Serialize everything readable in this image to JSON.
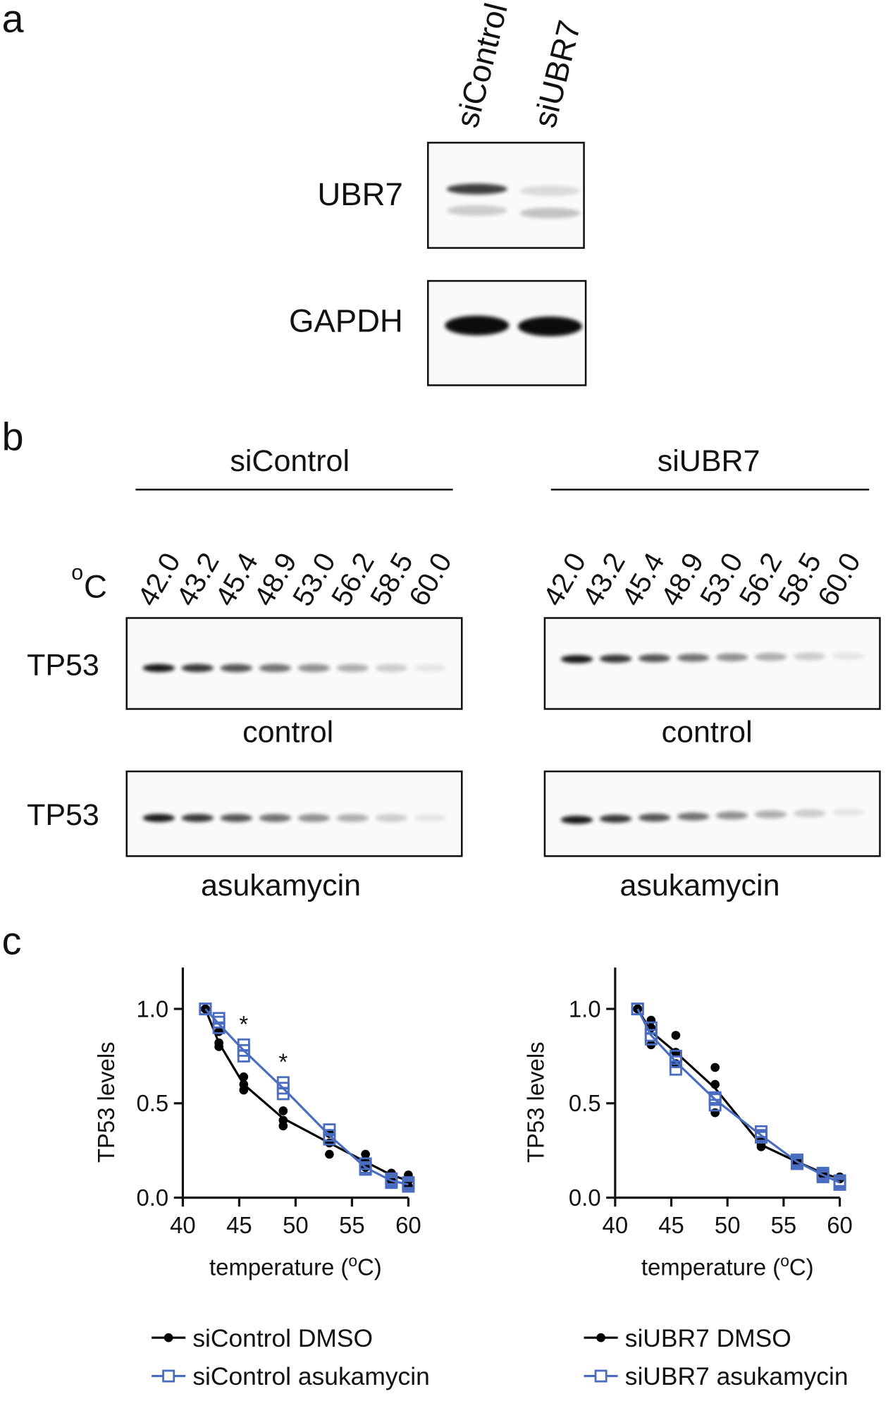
{
  "panel_a": {
    "label": "a",
    "lanes": [
      "siControl",
      "siUBR7"
    ],
    "rows": [
      "UBR7",
      "GAPDH"
    ]
  },
  "panel_b": {
    "label": "b",
    "unit_parts": [
      "o",
      "C"
    ],
    "groups": [
      {
        "name": "siControl",
        "temperatures": [
          "42.0",
          "43.2",
          "45.4",
          "48.9",
          "53.0",
          "56.2",
          "58.5",
          "60.0"
        ],
        "blots": [
          {
            "row": "TP53",
            "condition": "control"
          },
          {
            "row": "TP53",
            "condition": "asukamycin"
          }
        ]
      },
      {
        "name": "siUBR7",
        "temperatures": [
          "42.0",
          "43.2",
          "45.4",
          "48.9",
          "53.0",
          "56.2",
          "58.5",
          "60.0"
        ],
        "blots": [
          {
            "row": "TP53",
            "condition": "control"
          },
          {
            "row": "TP53",
            "condition": "asukamycin"
          }
        ]
      }
    ]
  },
  "panel_c": {
    "label": "c"
  },
  "chart_data": [
    {
      "type": "line",
      "ylabel": "TP53 levels",
      "xlabel_parts": [
        "temperature (",
        "o",
        "C)"
      ],
      "x": [
        42.0,
        43.2,
        45.4,
        48.9,
        53.0,
        56.2,
        58.5,
        60.0
      ],
      "xlim": [
        40,
        60
      ],
      "ylim": [
        0,
        1.2
      ],
      "xticks": [
        40,
        45,
        50,
        55,
        60
      ],
      "yticks": [
        {
          "value": 0,
          "label": "0.0"
        },
        {
          "value": 0.5,
          "label": "0.5"
        },
        {
          "value": 1,
          "label": "1.0"
        }
      ],
      "series": [
        {
          "name": "siControl DMSO",
          "color": "#000000",
          "marker": "circle",
          "values": [
            1.0,
            0.82,
            0.6,
            0.42,
            0.29,
            0.19,
            0.12,
            0.09
          ],
          "replicates": [
            [
              1.0,
              1.0,
              1.0
            ],
            [
              0.8,
              0.82,
              0.88
            ],
            [
              0.57,
              0.6,
              0.64
            ],
            [
              0.38,
              0.41,
              0.46
            ],
            [
              0.23,
              0.29,
              0.34
            ],
            [
              0.16,
              0.19,
              0.23
            ],
            [
              0.09,
              0.12,
              0.13
            ],
            [
              0.06,
              0.09,
              0.12
            ]
          ]
        },
        {
          "name": "siControl asukamycin",
          "color": "#4a6cc0",
          "marker": "square",
          "values": [
            1.0,
            0.92,
            0.78,
            0.58,
            0.33,
            0.16,
            0.09,
            0.07
          ],
          "replicates": [
            [
              1.0,
              1.0,
              1.0
            ],
            [
              0.9,
              0.93,
              0.95
            ],
            [
              0.75,
              0.78,
              0.81
            ],
            [
              0.55,
              0.58,
              0.61
            ],
            [
              0.31,
              0.33,
              0.36
            ],
            [
              0.15,
              0.16,
              0.18
            ],
            [
              0.08,
              0.09,
              0.1
            ],
            [
              0.06,
              0.07,
              0.08
            ]
          ]
        }
      ],
      "annotations": [
        {
          "text": "*",
          "x": 45.4
        },
        {
          "text": "*",
          "x": 48.9
        }
      ]
    },
    {
      "type": "line",
      "ylabel": "TP53 levels",
      "xlabel_parts": [
        "temperature (",
        "o",
        "C)"
      ],
      "x": [
        42.0,
        43.2,
        45.4,
        48.9,
        53.0,
        56.2,
        58.5,
        60.0
      ],
      "xlim": [
        40,
        60
      ],
      "ylim": [
        0,
        1.2
      ],
      "xticks": [
        40,
        45,
        50,
        55,
        60
      ],
      "yticks": [
        {
          "value": 0,
          "label": "0.0"
        },
        {
          "value": 0.5,
          "label": "0.5"
        },
        {
          "value": 1,
          "label": "1.0"
        }
      ],
      "series": [
        {
          "name": "siUBR7 DMSO",
          "color": "#000000",
          "marker": "circle",
          "values": [
            1.0,
            0.88,
            0.77,
            0.58,
            0.28,
            0.19,
            0.13,
            0.1
          ],
          "replicates": [
            [
              1.0,
              1.0,
              1.0
            ],
            [
              0.81,
              0.9,
              0.94
            ],
            [
              0.71,
              0.77,
              0.86
            ],
            [
              0.45,
              0.6,
              0.69
            ],
            [
              0.27,
              0.28,
              0.3
            ],
            [
              0.18,
              0.19,
              0.2
            ],
            [
              0.12,
              0.13,
              0.14
            ],
            [
              0.1,
              0.1,
              0.11
            ]
          ]
        },
        {
          "name": "siUBR7 asukamycin",
          "color": "#4a6cc0",
          "marker": "square",
          "values": [
            1.0,
            0.86,
            0.72,
            0.52,
            0.33,
            0.19,
            0.12,
            0.08
          ],
          "replicates": [
            [
              1.0,
              1.0,
              1.0
            ],
            [
              0.84,
              0.86,
              0.9
            ],
            [
              0.68,
              0.72,
              0.75
            ],
            [
              0.49,
              0.52,
              0.53
            ],
            [
              0.32,
              0.33,
              0.35
            ],
            [
              0.18,
              0.19,
              0.2
            ],
            [
              0.11,
              0.12,
              0.13
            ],
            [
              0.07,
              0.08,
              0.09
            ]
          ]
        }
      ],
      "annotations": []
    }
  ]
}
